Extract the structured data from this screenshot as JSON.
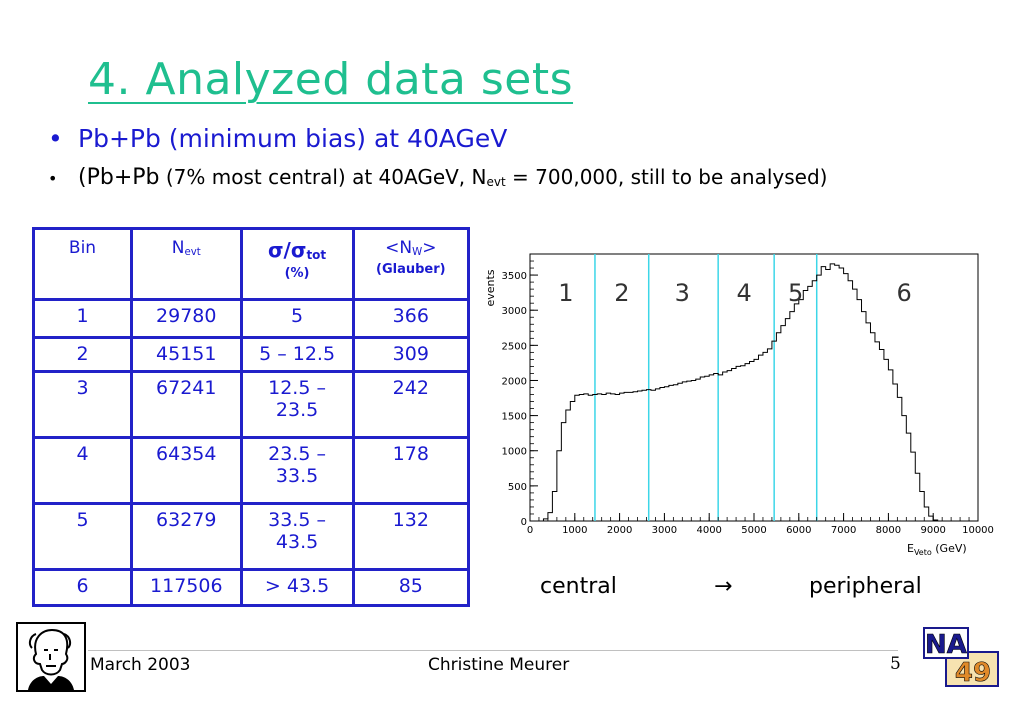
{
  "slide": {
    "title": "4. Analyzed data sets",
    "bullet1": "Pb+Pb (minimum bias) at 40AGeV",
    "bullet2_prefix": "(Pb+Pb",
    "bullet2_mid": " (7% most central) at 40AGeV, N",
    "bullet2_sub": "evt",
    "bullet2_suffix": " = 700,000, still to be analysed)",
    "bullet_symbol": "•"
  },
  "table": {
    "headers": {
      "bin": "Bin",
      "nevt_main": "N",
      "nevt_sub": "evt",
      "sigma_main": "σ/σ",
      "sigma_sub": "tot",
      "sigma_unit": "(%)",
      "nw_main": "<N",
      "nw_sub": "W",
      "nw_close": ">",
      "nw_note": "(Glauber)"
    },
    "rows": [
      {
        "bin": "1",
        "nevt": "29780",
        "sigma": "5",
        "nw": "366"
      },
      {
        "bin": "2",
        "nevt": "45151",
        "sigma": "5 – 12.5",
        "nw": "309"
      },
      {
        "bin": "3",
        "nevt": "67241",
        "sigma": "12.5 – 23.5",
        "nw": "242"
      },
      {
        "bin": "4",
        "nevt": "64354",
        "sigma": "23.5 – 33.5",
        "nw": "178"
      },
      {
        "bin": "5",
        "nevt": "63279",
        "sigma": "33.5 – 43.5",
        "nw": "132"
      },
      {
        "bin": "6",
        "nevt": "117506",
        "sigma": "> 43.5",
        "nw": "85"
      }
    ]
  },
  "chart_data": {
    "type": "line",
    "ylabel": "events",
    "xlabel_main": "E",
    "xlabel_sub": "Veto",
    "xlabel_unit": " (GeV)",
    "xlim": [
      0,
      10000
    ],
    "ylim": [
      0,
      3800
    ],
    "xticks": [
      0,
      1000,
      2000,
      3000,
      4000,
      5000,
      6000,
      7000,
      8000,
      9000,
      10000
    ],
    "yticks": [
      0,
      500,
      1000,
      1500,
      2000,
      2500,
      3000,
      3500
    ],
    "bin_boundaries": [
      1450,
      2650,
      4200,
      5450,
      6400
    ],
    "bin_labels": [
      {
        "label": "1",
        "x": 800
      },
      {
        "label": "2",
        "x": 2050
      },
      {
        "label": "3",
        "x": 3400
      },
      {
        "label": "4",
        "x": 4780
      },
      {
        "label": "5",
        "x": 5930
      },
      {
        "label": "6",
        "x": 8350
      }
    ],
    "histogram": {
      "x": [
        0,
        100,
        200,
        300,
        400,
        500,
        600,
        700,
        800,
        900,
        1000,
        1100,
        1200,
        1300,
        1400,
        1500,
        1600,
        1700,
        1800,
        1900,
        2000,
        2100,
        2200,
        2300,
        2400,
        2500,
        2600,
        2700,
        2800,
        2900,
        3000,
        3100,
        3200,
        3300,
        3400,
        3500,
        3600,
        3700,
        3800,
        3900,
        4000,
        4100,
        4200,
        4300,
        4400,
        4500,
        4600,
        4700,
        4800,
        4900,
        5000,
        5100,
        5200,
        5300,
        5400,
        5500,
        5600,
        5700,
        5800,
        5900,
        6000,
        6100,
        6200,
        6300,
        6400,
        6500,
        6600,
        6700,
        6800,
        6900,
        7000,
        7100,
        7200,
        7300,
        7400,
        7500,
        7600,
        7700,
        7800,
        7900,
        8000,
        8100,
        8200,
        8300,
        8400,
        8500,
        8600,
        8700,
        8800,
        8900,
        9000,
        9100,
        9200,
        9300,
        9400,
        9500,
        9600,
        9700,
        9800,
        9900
      ],
      "y": [
        0,
        0,
        0,
        30,
        120,
        420,
        1000,
        1400,
        1580,
        1700,
        1790,
        1800,
        1810,
        1790,
        1800,
        1810,
        1800,
        1820,
        1810,
        1800,
        1820,
        1830,
        1830,
        1840,
        1850,
        1860,
        1870,
        1860,
        1880,
        1900,
        1910,
        1930,
        1940,
        1960,
        1980,
        1990,
        2000,
        2020,
        2050,
        2060,
        2080,
        2100,
        2080,
        2120,
        2140,
        2170,
        2200,
        2210,
        2240,
        2270,
        2300,
        2360,
        2400,
        2450,
        2560,
        2680,
        2780,
        2880,
        2980,
        3090,
        3150,
        3280,
        3340,
        3420,
        3500,
        3620,
        3580,
        3660,
        3640,
        3600,
        3520,
        3420,
        3300,
        3150,
        2980,
        2820,
        2680,
        2550,
        2440,
        2300,
        2150,
        1950,
        1760,
        1500,
        1250,
        980,
        680,
        420,
        200,
        70,
        15,
        0,
        0,
        0,
        0,
        0,
        0,
        0,
        0,
        0
      ]
    }
  },
  "captions": {
    "left": "central",
    "arrow": "→",
    "right": "peripheral"
  },
  "footer": {
    "date": "March 2003",
    "author": "Christine Meurer",
    "page": "5",
    "logo_top": "NA",
    "logo_bottom": "49"
  }
}
